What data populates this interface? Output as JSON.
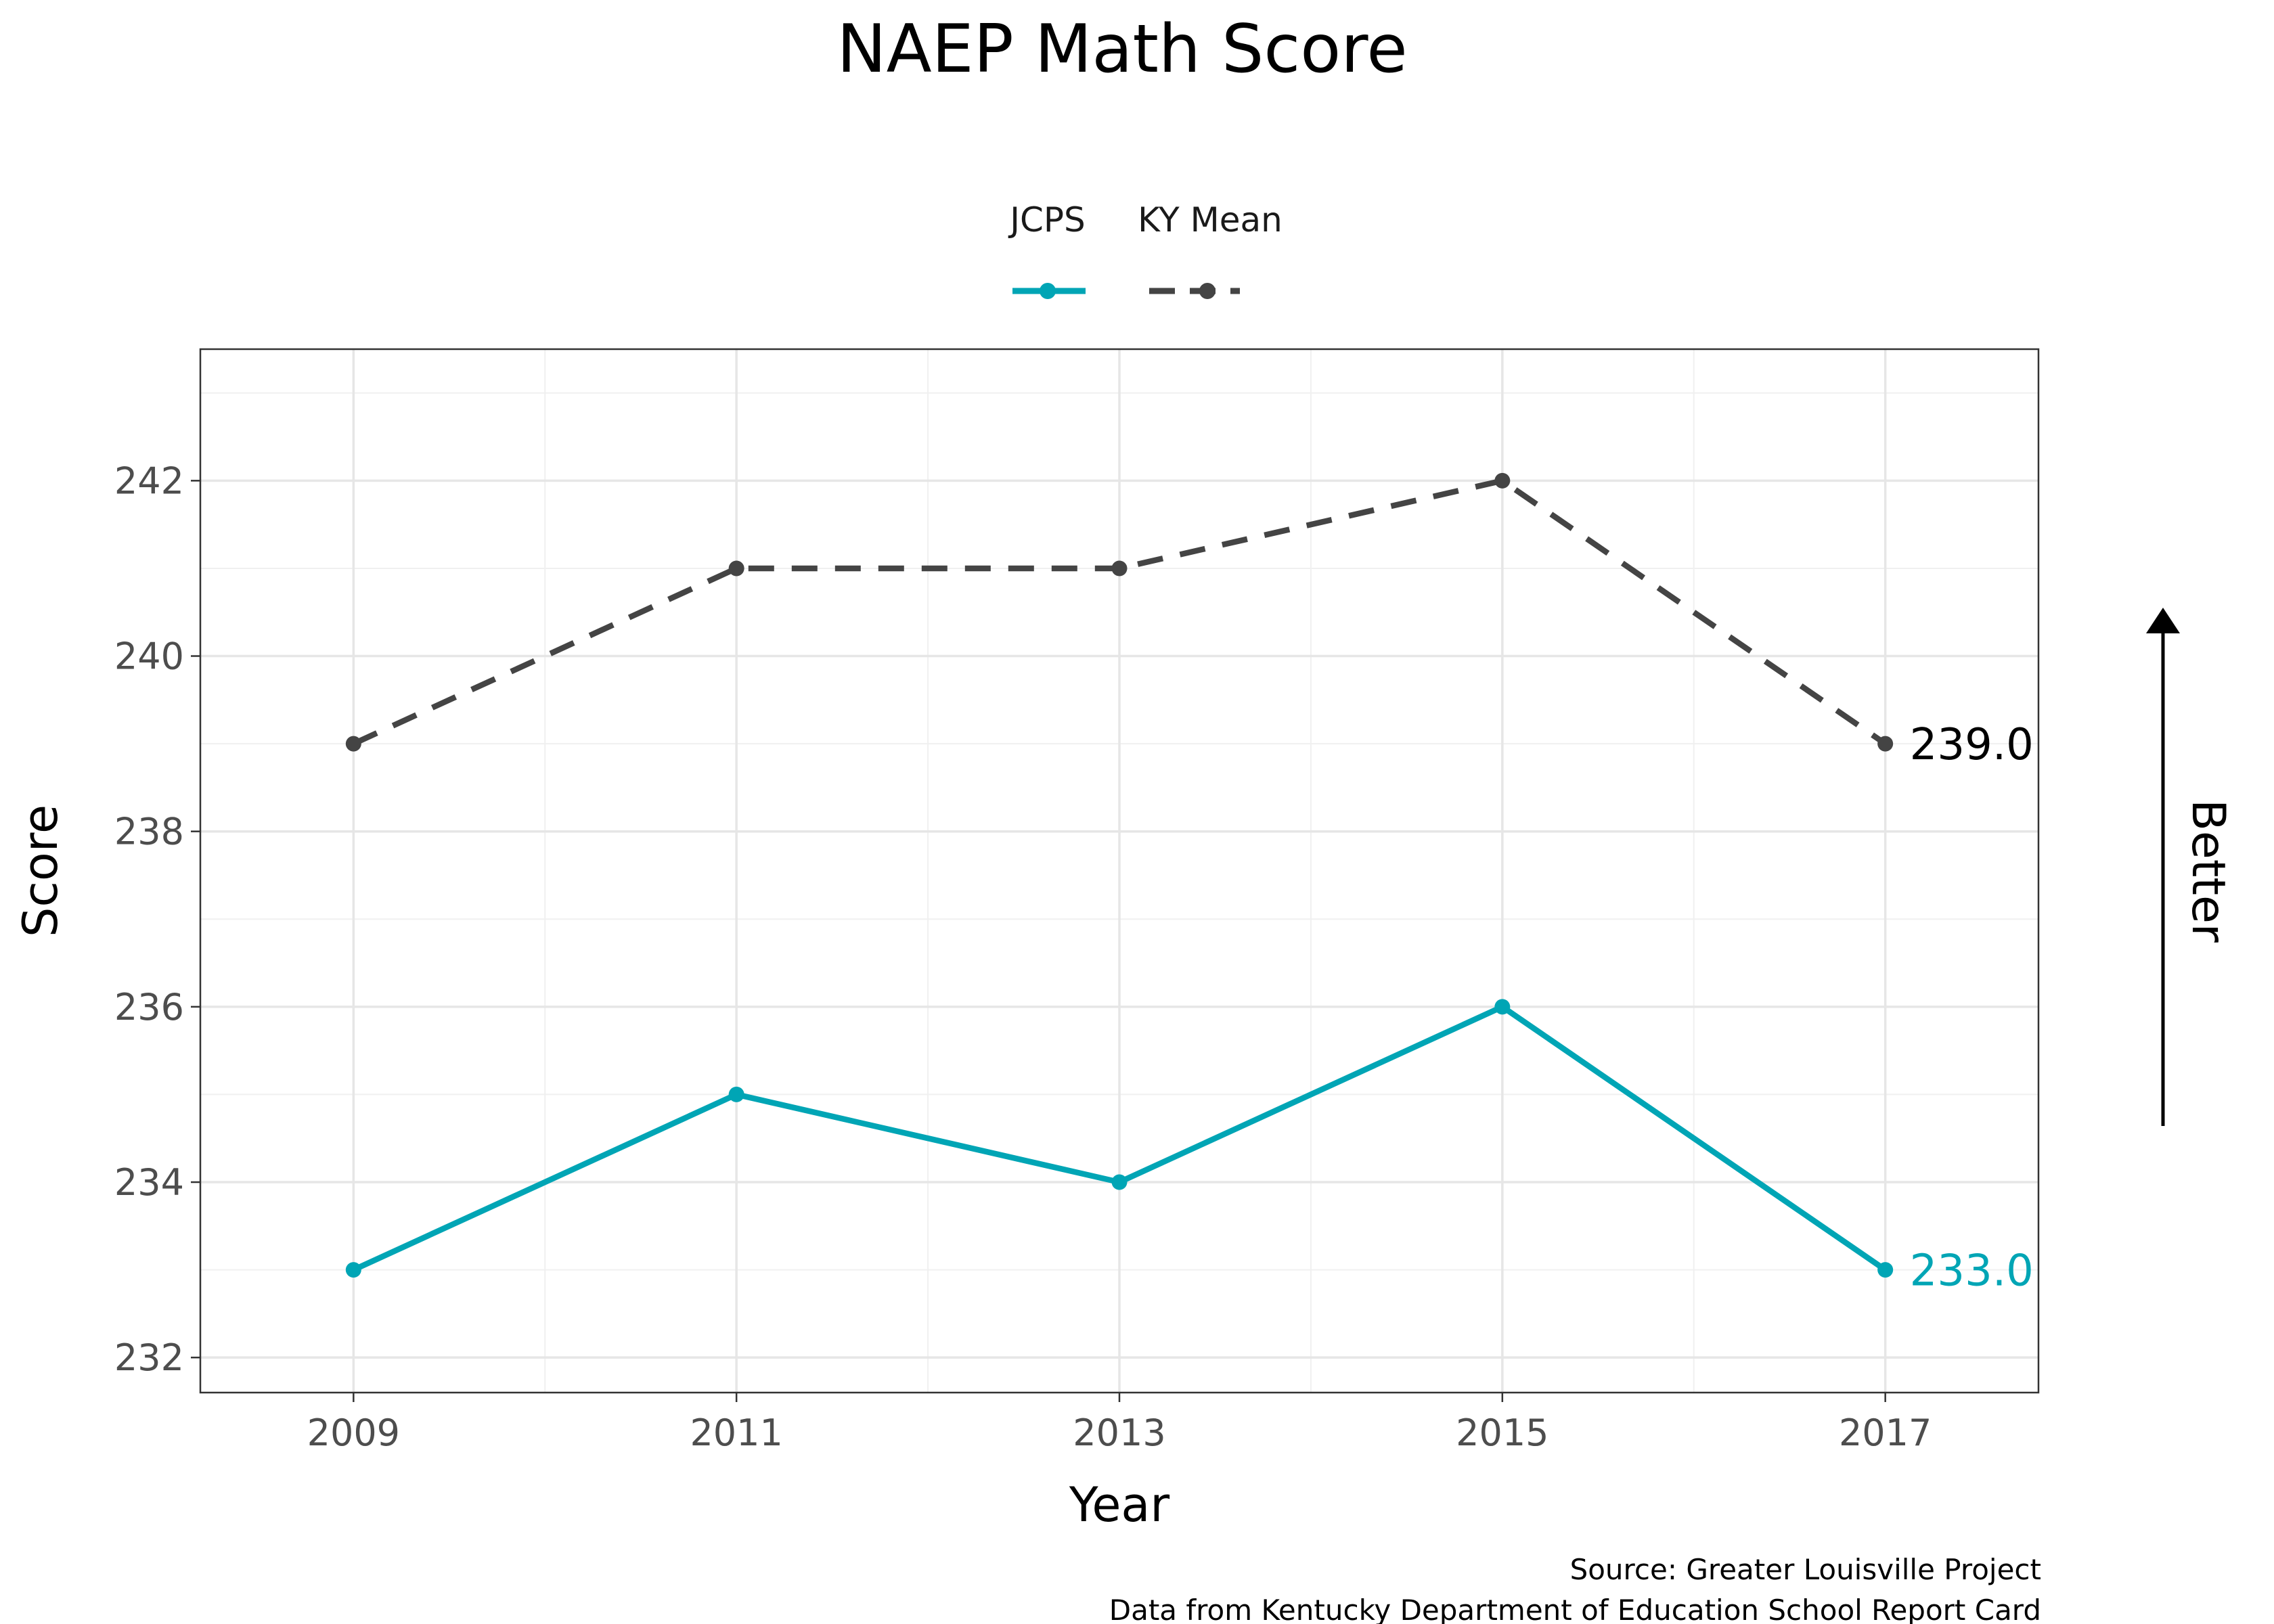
{
  "chart_data": {
    "type": "line",
    "title": "NAEP Math Score",
    "xlabel": "Year",
    "ylabel": "Score",
    "x": [
      2009,
      2011,
      2013,
      2015,
      2017
    ],
    "xlim": [
      2008.2,
      2017.8
    ],
    "ylim": [
      231.6,
      243.5
    ],
    "x_ticks": [
      2009,
      2011,
      2013,
      2015,
      2017
    ],
    "y_ticks": [
      232,
      234,
      236,
      238,
      240,
      242
    ],
    "grid": true,
    "legend_position": "top",
    "series": [
      {
        "name": "JCPS",
        "values": [
          233,
          235,
          234,
          236,
          233
        ],
        "color": "#00a5b5",
        "line_style": "solid",
        "end_label": "233.0"
      },
      {
        "name": "KY Mean",
        "values": [
          239,
          241,
          241,
          242,
          239
        ],
        "color": "#444444",
        "line_style": "dashed",
        "end_label": "239.0"
      }
    ]
  },
  "annotation": {
    "better_label": "Better",
    "arrow_direction": "up"
  },
  "caption": {
    "line1": "Source: Greater Louisville Project",
    "line2": "Data from Kentucky Department of Education School Report Card"
  }
}
